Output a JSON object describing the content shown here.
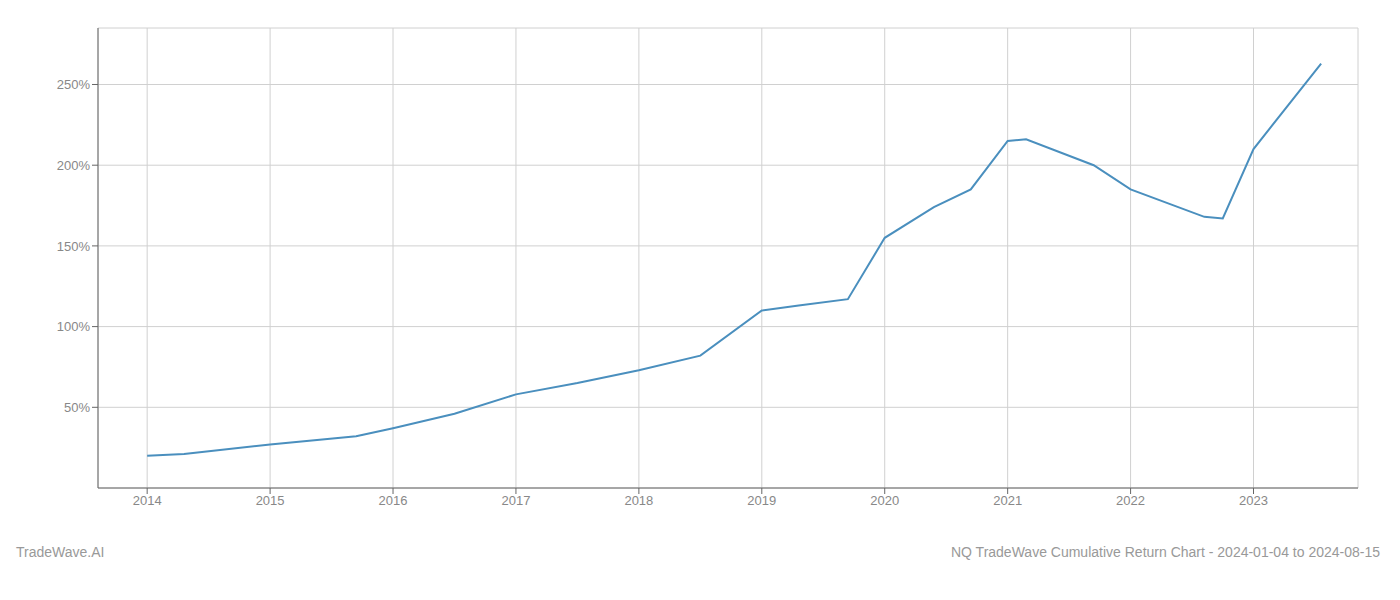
{
  "chart_data": {
    "type": "line",
    "title": "NQ TradeWave Cumulative Return Chart - 2024-01-04 to 2024-08-15",
    "annotations": [
      "TradeWave.AI"
    ],
    "x": [
      2014.0,
      2014.3,
      2015.0,
      2015.7,
      2016.0,
      2016.5,
      2017.0,
      2017.5,
      2018.0,
      2018.5,
      2019.0,
      2019.3,
      2019.7,
      2020.0,
      2020.4,
      2020.7,
      2021.0,
      2021.15,
      2021.7,
      2022.0,
      2022.6,
      2022.75,
      2023.0,
      2023.55
    ],
    "values": [
      20,
      21,
      27,
      32,
      37,
      46,
      58,
      65,
      73,
      82,
      110,
      113,
      117,
      155,
      174,
      185,
      215,
      216,
      200,
      185,
      168,
      167,
      210,
      263
    ],
    "color": "#4a8fbe",
    "xlim": [
      2013.6,
      2023.85
    ],
    "xticks": [
      2014,
      2015,
      2016,
      2017,
      2018,
      2019,
      2020,
      2021,
      2022,
      2023
    ],
    "ylim": [
      0,
      285
    ],
    "yticks": [
      {
        "value": 50,
        "label": "50%"
      },
      {
        "value": 100,
        "label": "100%"
      },
      {
        "value": 150,
        "label": "150%"
      },
      {
        "value": 200,
        "label": "200%"
      },
      {
        "value": 250,
        "label": "250%"
      }
    ],
    "grid": true
  }
}
